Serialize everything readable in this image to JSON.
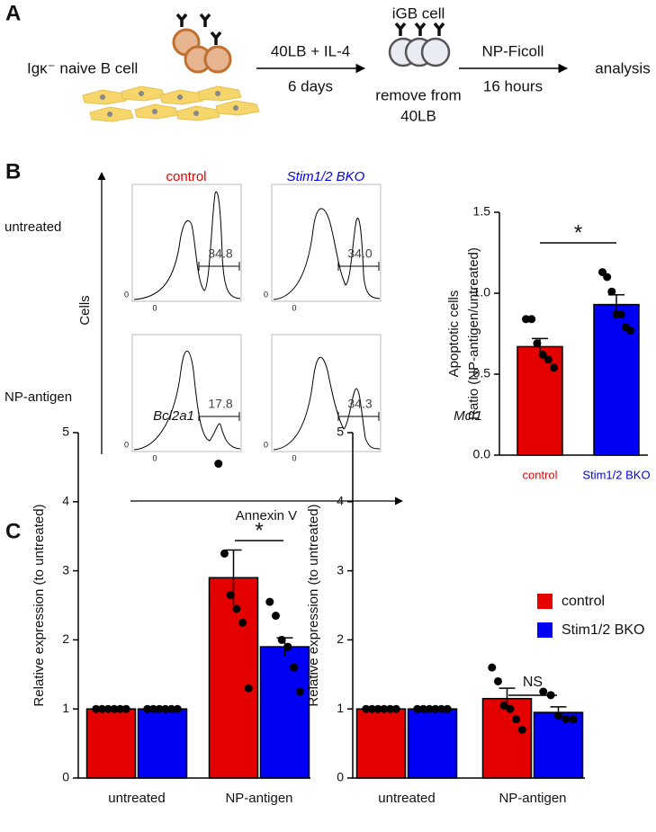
{
  "panel_a": {
    "letter": "A",
    "start_cell": "Igκ⁻ naive B cell",
    "step1_top": "40LB + IL-4",
    "step1_bottom": "6 days",
    "mid_cell": "iGB cell",
    "mid_note_1": "remove from",
    "mid_note_2": "40LB",
    "step2_top": "NP-Ficoll",
    "step2_bottom": "16 hours",
    "end": "analysis"
  },
  "panel_b": {
    "letter": "B",
    "columns": [
      "control",
      "Stim1/2 BKO"
    ],
    "rows": [
      "untreated",
      "NP-antigen"
    ],
    "gates": [
      [
        "34.8",
        "34.0"
      ],
      [
        "17.8",
        "34.3"
      ]
    ],
    "y_axis": "Cells",
    "x_axis": "Annexin V",
    "zero": "0"
  },
  "panel_c": {
    "letter": "C"
  },
  "chart_data": [
    {
      "type": "bar",
      "ylabel": [
        "Apoptotic cells",
        "Ratio (NP-antigen/untreated)"
      ],
      "categories": [
        "control",
        "Stim1/2 BKO"
      ],
      "colors": [
        "#e50000",
        "#0000f5"
      ],
      "values": [
        0.67,
        0.93
      ],
      "errors": [
        0.05,
        0.06
      ],
      "points": [
        [
          0.84,
          0.84,
          0.69,
          0.62,
          0.59,
          0.54
        ],
        [
          1.13,
          1.1,
          1.01,
          0.87,
          0.87,
          0.79,
          0.77
        ]
      ],
      "ylim": [
        0,
        1.5
      ],
      "yticks": [
        {
          "value": 0,
          "label": "0.0"
        },
        {
          "value": 0.5,
          "label": "0.5"
        },
        {
          "value": 1,
          "label": "1.0"
        },
        {
          "value": 1.5,
          "label": "1.5"
        }
      ],
      "significance": "*"
    },
    {
      "type": "bar",
      "title": "Bcl2a1",
      "ylabel": [
        "Relative expression (to untreated)"
      ],
      "categories": [
        "untreated",
        "NP-antigen"
      ],
      "legend": "right",
      "series": [
        {
          "name": "control",
          "color": "#e50000",
          "values": [
            1,
            2.9
          ],
          "errors": [
            0,
            0.4
          ],
          "points": [
            [
              1,
              1,
              1,
              1,
              1,
              1
            ],
            [
              4.55,
              3.25,
              2.65,
              2.45,
              2.25,
              1.3
            ]
          ]
        },
        {
          "name": "Stim1/2 BKO",
          "color": "#0000f5",
          "values": [
            1,
            1.9
          ],
          "errors": [
            0,
            0.13
          ],
          "points": [
            [
              1,
              1,
              1,
              1,
              1,
              1
            ],
            [
              2.55,
              2.35,
              2.0,
              1.9,
              1.6,
              1.25
            ]
          ]
        }
      ],
      "ylim": [
        0,
        5
      ],
      "yticks": [
        0,
        1,
        2,
        3,
        4,
        5
      ],
      "significance": "*"
    },
    {
      "type": "bar",
      "title": "Mcl1",
      "ylabel": [
        "Relative expression (to untreated)"
      ],
      "categories": [
        "untreated",
        "NP-antigen"
      ],
      "series": [
        {
          "color": "#e50000",
          "values": [
            1,
            1.15
          ],
          "errors": [
            0,
            0.15
          ],
          "points": [
            [
              1,
              1,
              1,
              1,
              1,
              1
            ],
            [
              1.6,
              1.4,
              1.05,
              1.0,
              0.85,
              0.7
            ]
          ]
        },
        {
          "color": "#0000f5",
          "values": [
            1,
            0.95
          ],
          "errors": [
            0,
            0.08
          ],
          "points": [
            [
              1,
              1,
              1,
              1,
              1,
              1
            ],
            [
              1.25,
              1.2,
              0.9,
              0.85,
              0.85
            ]
          ]
        }
      ],
      "ylim": [
        0,
        5
      ],
      "yticks": [
        0,
        1,
        2,
        3,
        4,
        5
      ],
      "significance": "NS"
    }
  ]
}
